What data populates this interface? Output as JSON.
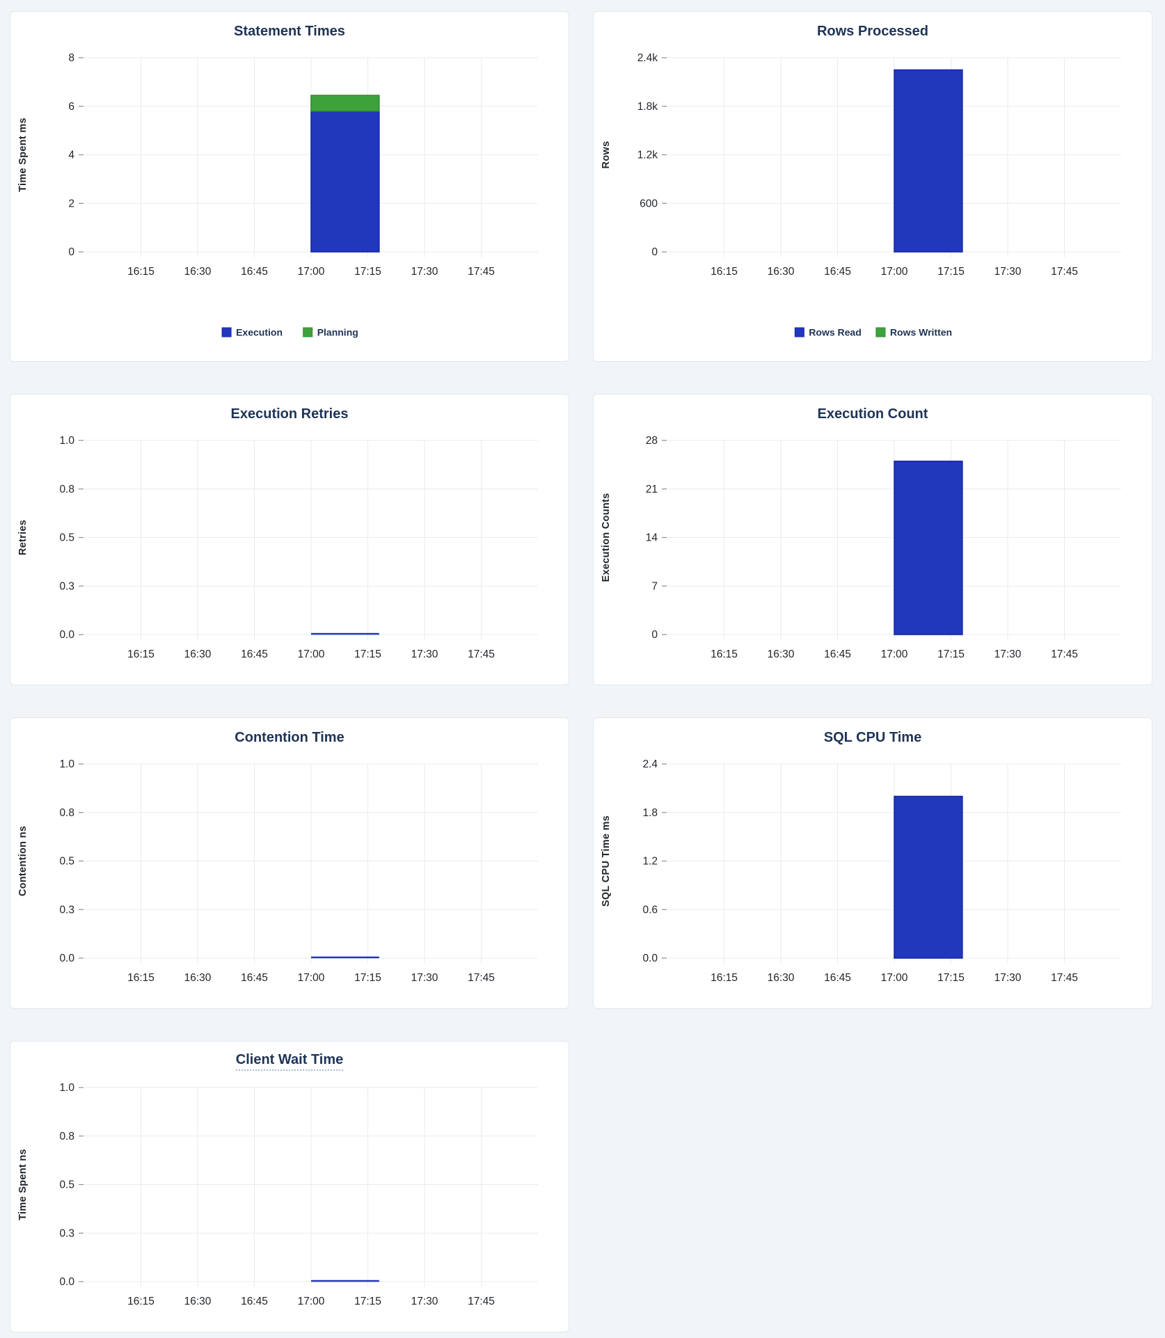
{
  "page": {
    "background": "#f1f5f8"
  },
  "colors": {
    "card_background": "#ffffff",
    "card_border": "#e2e7ed",
    "title": "#1e3356",
    "axis_label": "#22272c",
    "tick_label": "#1f2429",
    "gridline": "#e9ebee",
    "tick_mark": "#8a9097",
    "bar_blue": "#2137bc",
    "bar_blue_edge": "#1726a8",
    "bar_green": "#3ea23c",
    "bar_green_edge": "#2f8c30",
    "line_blue": "#2134b8",
    "title_underline": "#a9b7c9"
  },
  "charts": [
    {
      "id": "statement-times",
      "title": "Statement Times",
      "title_has_tooltip": false,
      "ylabel": "Time Spent ms",
      "chart_data": {
        "type": "bar",
        "stacked": true,
        "title": "Statement Times",
        "ylabel": "Time Spent ms",
        "y_unit": "ms",
        "x_range": [
          "16:00",
          "18:00"
        ],
        "x_ticks": [
          "16:15",
          "16:30",
          "16:45",
          "17:00",
          "17:15",
          "17:30",
          "17:45"
        ],
        "y_max": 8,
        "y_tick_values": [
          0,
          2,
          4,
          6,
          8
        ],
        "y_tick_labels": [
          "0",
          "2",
          "4",
          "6",
          "8"
        ],
        "grid": true,
        "legend_position": "bottom",
        "data_window": {
          "start": "17:00",
          "end": "17:18"
        },
        "series": [
          {
            "name": "Execution",
            "value": 5.8,
            "color_key": "blue"
          },
          {
            "name": "Planning",
            "value": 0.65,
            "color_key": "green"
          }
        ],
        "legend": [
          {
            "label": "Execution",
            "color_key": "blue"
          },
          {
            "label": "Planning",
            "color_key": "green"
          }
        ]
      }
    },
    {
      "id": "rows-processed",
      "title": "Rows Processed",
      "title_has_tooltip": false,
      "ylabel": "Rows",
      "chart_data": {
        "type": "bar",
        "stacked": true,
        "title": "Rows Processed",
        "ylabel": "Rows",
        "y_unit": "rows",
        "x_range": [
          "16:00",
          "18:00"
        ],
        "x_ticks": [
          "16:15",
          "16:30",
          "16:45",
          "17:00",
          "17:15",
          "17:30",
          "17:45"
        ],
        "y_max": 2400,
        "y_tick_values": [
          0,
          600,
          1200,
          1800,
          2400
        ],
        "y_tick_labels": [
          "0",
          "600",
          "1.2k",
          "1.8k",
          "2.4k"
        ],
        "grid": true,
        "legend_position": "bottom",
        "data_window": {
          "start": "17:00",
          "end": "17:18"
        },
        "series": [
          {
            "name": "Rows Read",
            "value": 2250,
            "color_key": "blue"
          },
          {
            "name": "Rows Written",
            "value": 0,
            "color_key": "green"
          }
        ],
        "legend": [
          {
            "label": "Rows Read",
            "color_key": "blue"
          },
          {
            "label": "Rows Written",
            "color_key": "green"
          }
        ]
      }
    },
    {
      "id": "execution-retries",
      "title": "Execution Retries",
      "title_has_tooltip": false,
      "ylabel": "Retries",
      "chart_data": {
        "type": "line",
        "title": "Execution Retries",
        "ylabel": "Retries",
        "y_unit": "retries",
        "x_range": [
          "16:00",
          "18:00"
        ],
        "x_ticks": [
          "16:15",
          "16:30",
          "16:45",
          "17:00",
          "17:15",
          "17:30",
          "17:45"
        ],
        "y_max": 1.0,
        "y_tick_values": [
          0,
          0.25,
          0.5,
          0.75,
          1.0
        ],
        "y_tick_labels": [
          "0.0",
          "0.3",
          "0.5",
          "0.8",
          "1.0"
        ],
        "grid": true,
        "data_window": {
          "start": "17:00",
          "end": "17:18"
        },
        "series": [
          {
            "name": "Retries",
            "value": 0,
            "color_key": "blue"
          }
        ]
      }
    },
    {
      "id": "execution-count",
      "title": "Execution Count",
      "title_has_tooltip": false,
      "ylabel": "Execution Counts",
      "chart_data": {
        "type": "bar",
        "stacked": true,
        "title": "Execution Count",
        "ylabel": "Execution Counts",
        "y_unit": "executions",
        "x_range": [
          "16:00",
          "18:00"
        ],
        "x_ticks": [
          "16:15",
          "16:30",
          "16:45",
          "17:00",
          "17:15",
          "17:30",
          "17:45"
        ],
        "y_max": 28,
        "y_tick_values": [
          0,
          7,
          14,
          21,
          28
        ],
        "y_tick_labels": [
          "0",
          "7",
          "14",
          "21",
          "28"
        ],
        "grid": true,
        "data_window": {
          "start": "17:00",
          "end": "17:18"
        },
        "series": [
          {
            "name": "Execution Count",
            "value": 25,
            "color_key": "blue"
          }
        ]
      }
    },
    {
      "id": "contention-time",
      "title": "Contention Time",
      "title_has_tooltip": false,
      "ylabel": "Contention ns",
      "chart_data": {
        "type": "line",
        "title": "Contention Time",
        "ylabel": "Contention ns",
        "y_unit": "ns",
        "x_range": [
          "16:00",
          "18:00"
        ],
        "x_ticks": [
          "16:15",
          "16:30",
          "16:45",
          "17:00",
          "17:15",
          "17:30",
          "17:45"
        ],
        "y_max": 1.0,
        "y_tick_values": [
          0,
          0.25,
          0.5,
          0.75,
          1.0
        ],
        "y_tick_labels": [
          "0.0",
          "0.3",
          "0.5",
          "0.8",
          "1.0"
        ],
        "grid": true,
        "data_window": {
          "start": "17:00",
          "end": "17:18"
        },
        "series": [
          {
            "name": "Contention",
            "value": 0,
            "color_key": "blue"
          }
        ]
      }
    },
    {
      "id": "sql-cpu-time",
      "title": "SQL CPU Time",
      "title_has_tooltip": false,
      "ylabel": "SQL CPU Time ms",
      "chart_data": {
        "type": "bar",
        "stacked": true,
        "title": "SQL CPU Time",
        "ylabel": "SQL CPU Time ms",
        "y_unit": "ms",
        "x_range": [
          "16:00",
          "18:00"
        ],
        "x_ticks": [
          "16:15",
          "16:30",
          "16:45",
          "17:00",
          "17:15",
          "17:30",
          "17:45"
        ],
        "y_max": 2.4,
        "y_tick_values": [
          0,
          0.6,
          1.2,
          1.8,
          2.4
        ],
        "y_tick_labels": [
          "0.0",
          "0.6",
          "1.2",
          "1.8",
          "2.4"
        ],
        "grid": true,
        "data_window": {
          "start": "17:00",
          "end": "17:18"
        },
        "series": [
          {
            "name": "SQL CPU Time",
            "value": 2.0,
            "color_key": "blue"
          }
        ]
      }
    },
    {
      "id": "client-wait-time",
      "title": "Client Wait Time",
      "title_has_tooltip": true,
      "ylabel": "Time Spent ns",
      "chart_data": {
        "type": "line",
        "title": "Client Wait Time",
        "ylabel": "Time Spent ns",
        "y_unit": "ns",
        "x_range": [
          "16:00",
          "18:00"
        ],
        "x_ticks": [
          "16:15",
          "16:30",
          "16:45",
          "17:00",
          "17:15",
          "17:30",
          "17:45"
        ],
        "y_max": 1.0,
        "y_tick_values": [
          0,
          0.25,
          0.5,
          0.75,
          1.0
        ],
        "y_tick_labels": [
          "0.0",
          "0.3",
          "0.5",
          "0.8",
          "1.0"
        ],
        "grid": true,
        "data_window": {
          "start": "17:00",
          "end": "17:18"
        },
        "series": [
          {
            "name": "Client Wait",
            "value": 0,
            "color_key": "blue"
          }
        ]
      }
    }
  ]
}
